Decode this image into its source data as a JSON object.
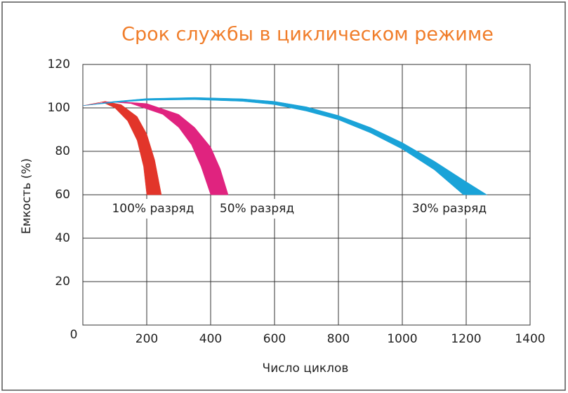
{
  "chart_data": {
    "type": "band",
    "title": "Срок службы в циклическом режиме",
    "x_label": "Число циклов",
    "y_label": "Емкость (%)",
    "xlim": [
      0,
      1400
    ],
    "xticks": [
      200,
      400,
      600,
      800,
      1000,
      1200,
      1400
    ],
    "ylim": [
      0,
      120
    ],
    "yticks": [
      0,
      20,
      40,
      60,
      80,
      100,
      120
    ],
    "grid": true,
    "series": [
      {
        "name": "100% разряд",
        "color": "#e2352a",
        "x": [
          0,
          70,
          120,
          170,
          200,
          225,
          246,
          200,
          190,
          170,
          140,
          100,
          60
        ],
        "values": [
          101,
          103,
          101.5,
          96,
          88,
          76,
          60,
          60,
          73,
          85,
          94,
          100,
          102.7
        ]
      },
      {
        "name": "50% разряд",
        "color": "#e0237f",
        "x": [
          0,
          100,
          200,
          300,
          350,
          400,
          430,
          455,
          400,
          370,
          340,
          300,
          250,
          150,
          80
        ],
        "values": [
          101,
          103,
          102,
          97,
          91,
          82,
          72,
          60,
          60,
          73,
          83,
          91,
          97,
          102,
          102.8
        ]
      },
      {
        "name": "30% разряд",
        "color": "#1aa3d8",
        "x": [
          0,
          100,
          200,
          350,
          500,
          600,
          700,
          800,
          900,
          1000,
          1100,
          1200,
          1265,
          1191,
          1100,
          1000,
          900,
          800,
          700,
          600,
          500,
          350,
          200,
          100
        ],
        "values": [
          101,
          103,
          104.3,
          104.8,
          104.2,
          103,
          100.5,
          96.5,
          91,
          84,
          75.5,
          66,
          60,
          60,
          71.5,
          81,
          88.5,
          94.5,
          98.5,
          101.5,
          103,
          103.8,
          103.5,
          102.5
        ]
      }
    ]
  }
}
